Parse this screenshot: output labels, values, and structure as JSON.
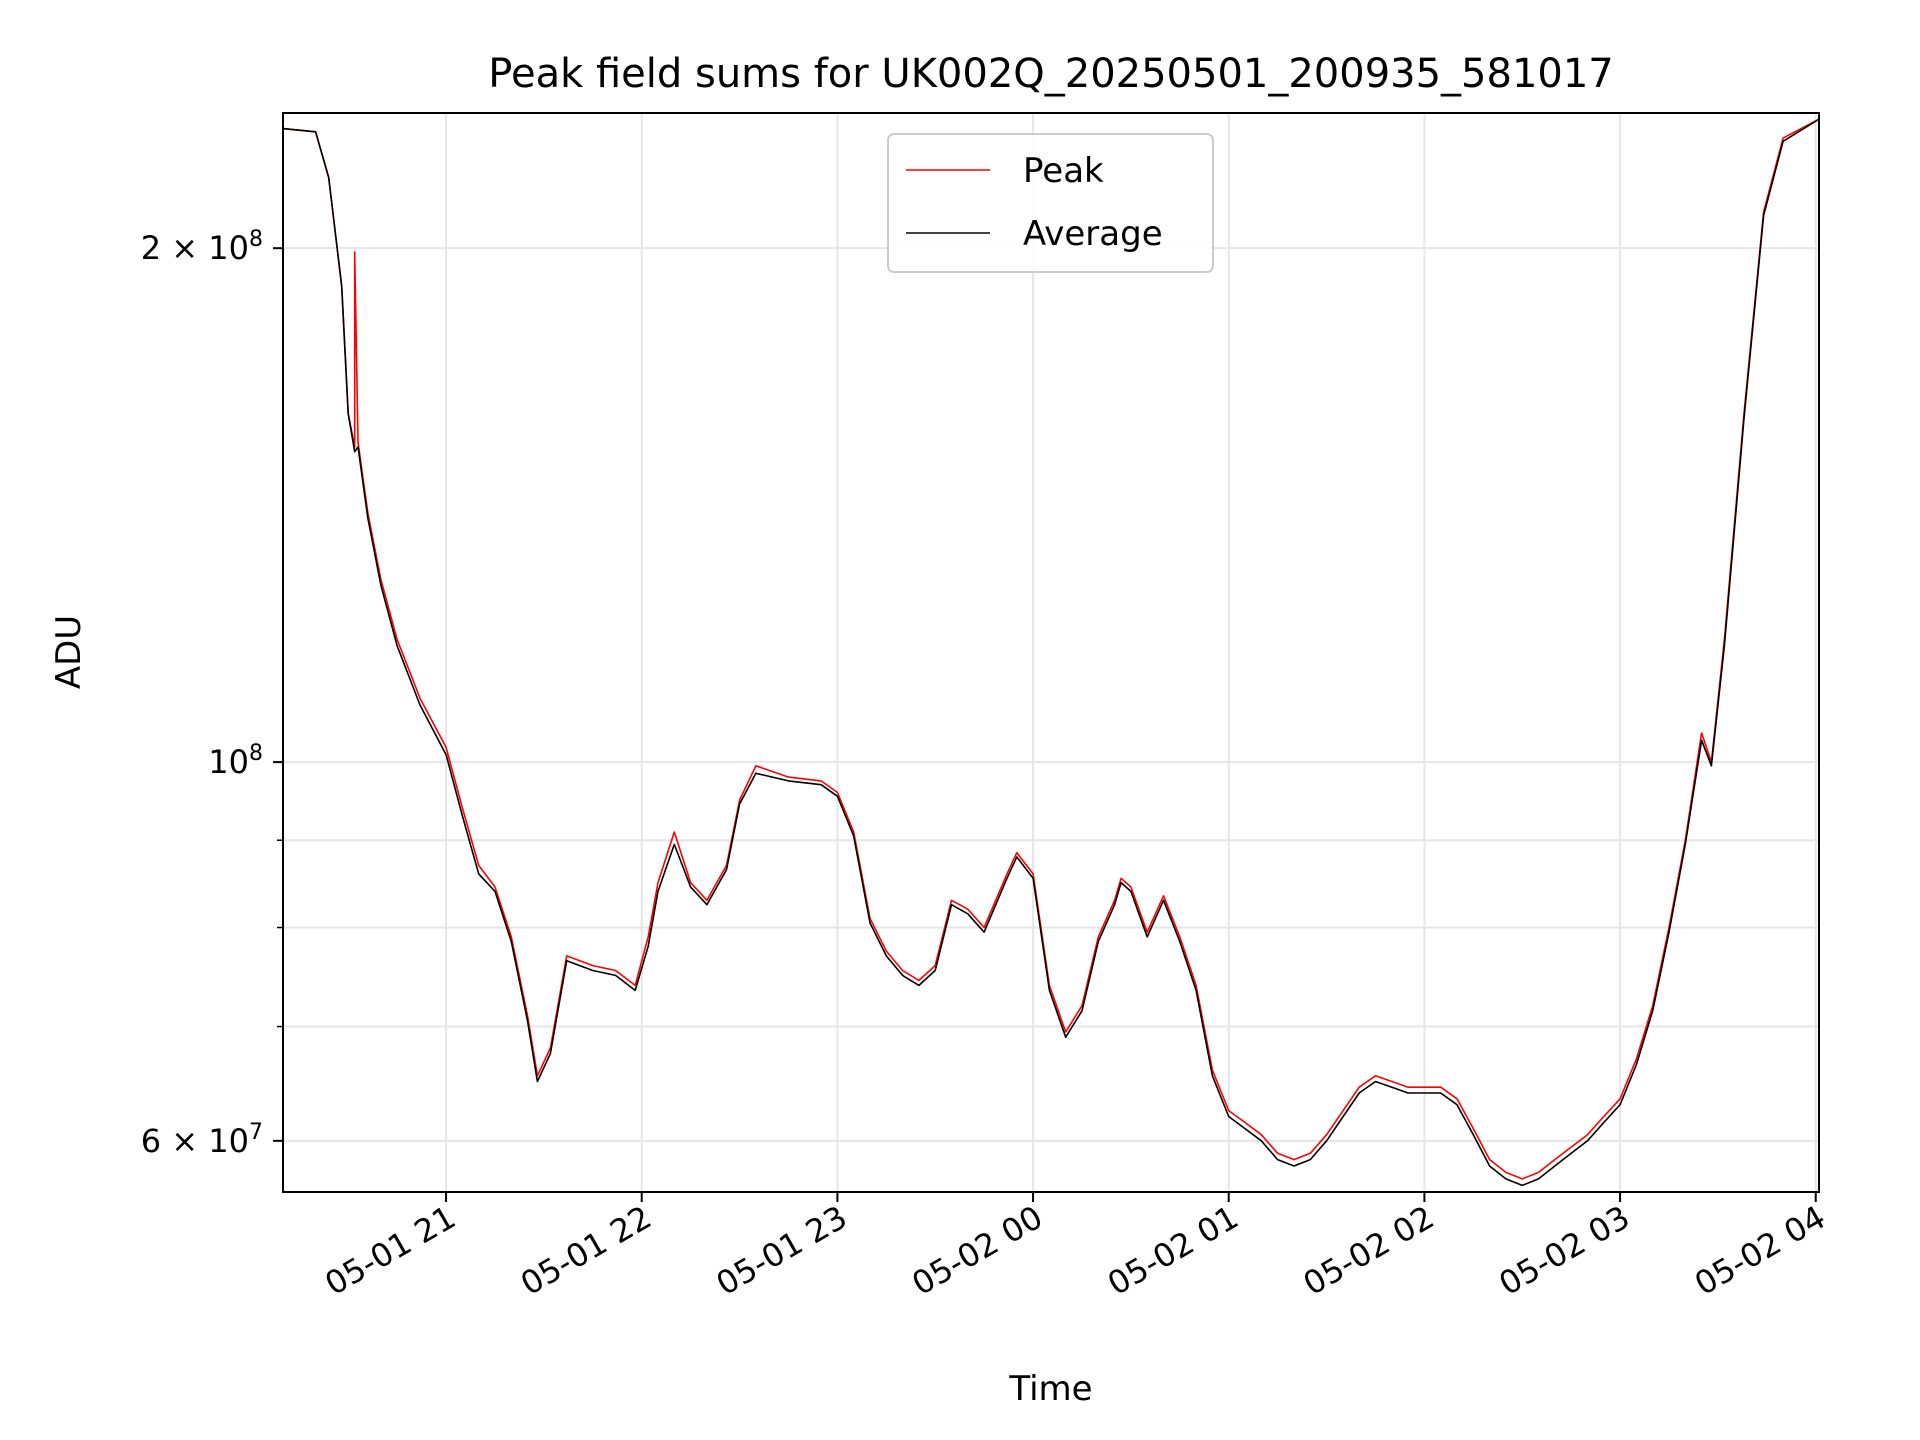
{
  "chart_data": {
    "type": "line",
    "title": "Peak field sums for UK002Q_20250501_200935_581017",
    "xlabel": "Time",
    "ylabel": "ADU",
    "yscale": "log",
    "xlim": [
      "2025-05-01 20:10",
      "2025-05-02 04:01"
    ],
    "ylim": [
      56000000,
      240000000
    ],
    "x_ticks": [
      {
        "t": "2025-05-01 21:00",
        "label": "05-01 21"
      },
      {
        "t": "2025-05-01 22:00",
        "label": "05-01 22"
      },
      {
        "t": "2025-05-01 23:00",
        "label": "05-01 23"
      },
      {
        "t": "2025-05-02 00:00",
        "label": "05-02 00"
      },
      {
        "t": "2025-05-02 01:00",
        "label": "05-02 01"
      },
      {
        "t": "2025-05-02 02:00",
        "label": "05-02 02"
      },
      {
        "t": "2025-05-02 03:00",
        "label": "05-02 03"
      },
      {
        "t": "2025-05-02 04:00",
        "label": "05-02 04"
      }
    ],
    "y_ticks": [
      {
        "value": 60000000,
        "base": "6 × 10",
        "exp": "7"
      },
      {
        "value": 100000000,
        "base": "10",
        "exp": "8"
      },
      {
        "value": 200000000,
        "base": "2 × 10",
        "exp": "8"
      }
    ],
    "y_minor_grid": [
      70000000,
      80000000,
      90000000
    ],
    "grid": true,
    "legend_position": "top-center",
    "series": [
      {
        "name": "Peak",
        "color": "#ff0000",
        "points": [
          [
            "2025-05-01 20:10",
            235000000
          ],
          [
            "2025-05-01 20:20",
            234000000
          ],
          [
            "2025-05-01 20:24",
            220000000
          ],
          [
            "2025-05-01 20:28",
            190000000
          ],
          [
            "2025-05-01 20:30",
            160000000
          ],
          [
            "2025-05-01 20:32",
            153000000
          ],
          [
            "2025-05-01 20:32",
            199000000
          ],
          [
            "2025-05-01 20:33",
            154000000
          ],
          [
            "2025-05-01 20:36",
            140000000
          ],
          [
            "2025-05-01 20:40",
            128000000
          ],
          [
            "2025-05-01 20:45",
            118000000
          ],
          [
            "2025-05-01 20:52",
            109000000
          ],
          [
            "2025-05-01 21:00",
            102000000
          ],
          [
            "2025-05-01 21:05",
            94000000
          ],
          [
            "2025-05-01 21:10",
            87000000
          ],
          [
            "2025-05-01 21:15",
            84500000
          ],
          [
            "2025-05-01 21:20",
            79000000
          ],
          [
            "2025-05-01 21:25",
            71000000
          ],
          [
            "2025-05-01 21:28",
            65500000
          ],
          [
            "2025-05-01 21:32",
            68000000
          ],
          [
            "2025-05-01 21:37",
            77000000
          ],
          [
            "2025-05-01 21:45",
            76000000
          ],
          [
            "2025-05-01 21:52",
            75500000
          ],
          [
            "2025-05-01 21:58",
            74000000
          ],
          [
            "2025-05-01 22:02",
            79000000
          ],
          [
            "2025-05-01 22:05",
            85000000
          ],
          [
            "2025-05-01 22:10",
            91000000
          ],
          [
            "2025-05-01 22:15",
            85000000
          ],
          [
            "2025-05-01 22:20",
            83000000
          ],
          [
            "2025-05-01 22:26",
            87000000
          ],
          [
            "2025-05-01 22:30",
            95000000
          ],
          [
            "2025-05-01 22:35",
            99500000
          ],
          [
            "2025-05-01 22:45",
            98000000
          ],
          [
            "2025-05-01 22:55",
            97500000
          ],
          [
            "2025-05-01 23:00",
            96000000
          ],
          [
            "2025-05-01 23:05",
            91000000
          ],
          [
            "2025-05-01 23:10",
            81000000
          ],
          [
            "2025-05-01 23:15",
            77500000
          ],
          [
            "2025-05-01 23:20",
            75500000
          ],
          [
            "2025-05-01 23:25",
            74500000
          ],
          [
            "2025-05-01 23:30",
            76000000
          ],
          [
            "2025-05-01 23:35",
            83000000
          ],
          [
            "2025-05-01 23:40",
            82000000
          ],
          [
            "2025-05-01 23:45",
            80000000
          ],
          [
            "2025-05-01 23:52",
            86000000
          ],
          [
            "2025-05-01 23:55",
            88500000
          ],
          [
            "2025-05-02 00:00",
            86000000
          ],
          [
            "2025-05-02 00:05",
            74000000
          ],
          [
            "2025-05-02 00:10",
            69500000
          ],
          [
            "2025-05-02 00:15",
            72000000
          ],
          [
            "2025-05-02 00:20",
            79000000
          ],
          [
            "2025-05-02 00:25",
            83000000
          ],
          [
            "2025-05-02 00:27",
            85500000
          ],
          [
            "2025-05-02 00:30",
            84500000
          ],
          [
            "2025-05-02 00:35",
            79500000
          ],
          [
            "2025-05-02 00:40",
            83500000
          ],
          [
            "2025-05-02 00:45",
            79000000
          ],
          [
            "2025-05-02 00:50",
            74000000
          ],
          [
            "2025-05-02 00:55",
            66000000
          ],
          [
            "2025-05-02 01:00",
            62500000
          ],
          [
            "2025-05-02 01:05",
            61500000
          ],
          [
            "2025-05-02 01:10",
            60500000
          ],
          [
            "2025-05-02 01:15",
            59000000
          ],
          [
            "2025-05-02 01:20",
            58500000
          ],
          [
            "2025-05-02 01:25",
            59000000
          ],
          [
            "2025-05-02 01:30",
            60500000
          ],
          [
            "2025-05-02 01:40",
            64500000
          ],
          [
            "2025-05-02 01:45",
            65500000
          ],
          [
            "2025-05-02 01:50",
            65000000
          ],
          [
            "2025-05-02 01:55",
            64500000
          ],
          [
            "2025-05-02 02:00",
            64500000
          ],
          [
            "2025-05-02 02:05",
            64500000
          ],
          [
            "2025-05-02 02:10",
            63500000
          ],
          [
            "2025-05-02 02:15",
            61000000
          ],
          [
            "2025-05-02 02:20",
            58500000
          ],
          [
            "2025-05-02 02:25",
            57500000
          ],
          [
            "2025-05-02 02:30",
            57000000
          ],
          [
            "2025-05-02 02:35",
            57500000
          ],
          [
            "2025-05-02 02:40",
            58500000
          ],
          [
            "2025-05-02 02:45",
            59500000
          ],
          [
            "2025-05-02 02:50",
            60500000
          ],
          [
            "2025-05-02 02:55",
            62000000
          ],
          [
            "2025-05-02 03:00",
            63500000
          ],
          [
            "2025-05-02 03:05",
            67000000
          ],
          [
            "2025-05-02 03:10",
            72000000
          ],
          [
            "2025-05-02 03:15",
            80000000
          ],
          [
            "2025-05-02 03:20",
            90000000
          ],
          [
            "2025-05-02 03:25",
            104000000
          ],
          [
            "2025-05-02 03:28",
            100000000
          ],
          [
            "2025-05-02 03:32",
            118000000
          ],
          [
            "2025-05-02 03:38",
            160000000
          ],
          [
            "2025-05-02 03:44",
            210000000
          ],
          [
            "2025-05-02 03:50",
            232000000
          ],
          [
            "2025-05-02 04:01",
            238000000
          ]
        ]
      },
      {
        "name": "Average",
        "color": "#000000",
        "points": [
          [
            "2025-05-01 20:10",
            235000000
          ],
          [
            "2025-05-01 20:20",
            234000000
          ],
          [
            "2025-05-01 20:24",
            220000000
          ],
          [
            "2025-05-01 20:28",
            190000000
          ],
          [
            "2025-05-01 20:30",
            160000000
          ],
          [
            "2025-05-01 20:32",
            152000000
          ],
          [
            "2025-05-01 20:33",
            153000000
          ],
          [
            "2025-05-01 20:36",
            139000000
          ],
          [
            "2025-05-01 20:40",
            127000000
          ],
          [
            "2025-05-01 20:45",
            117000000
          ],
          [
            "2025-05-01 20:52",
            108000000
          ],
          [
            "2025-05-01 21:00",
            101000000
          ],
          [
            "2025-05-01 21:05",
            93000000
          ],
          [
            "2025-05-01 21:10",
            86000000
          ],
          [
            "2025-05-01 21:15",
            84000000
          ],
          [
            "2025-05-01 21:20",
            78500000
          ],
          [
            "2025-05-01 21:25",
            70500000
          ],
          [
            "2025-05-01 21:28",
            65000000
          ],
          [
            "2025-05-01 21:32",
            67500000
          ],
          [
            "2025-05-01 21:37",
            76500000
          ],
          [
            "2025-05-01 21:45",
            75500000
          ],
          [
            "2025-05-01 21:52",
            75000000
          ],
          [
            "2025-05-01 21:58",
            73500000
          ],
          [
            "2025-05-01 22:02",
            78000000
          ],
          [
            "2025-05-01 22:05",
            84000000
          ],
          [
            "2025-05-01 22:10",
            89500000
          ],
          [
            "2025-05-01 22:15",
            84500000
          ],
          [
            "2025-05-01 22:20",
            82500000
          ],
          [
            "2025-05-01 22:26",
            86500000
          ],
          [
            "2025-05-01 22:30",
            94500000
          ],
          [
            "2025-05-01 22:35",
            98500000
          ],
          [
            "2025-05-01 22:45",
            97500000
          ],
          [
            "2025-05-01 22:55",
            97000000
          ],
          [
            "2025-05-01 23:00",
            95500000
          ],
          [
            "2025-05-01 23:05",
            90500000
          ],
          [
            "2025-05-01 23:10",
            80500000
          ],
          [
            "2025-05-01 23:15",
            77000000
          ],
          [
            "2025-05-01 23:20",
            75000000
          ],
          [
            "2025-05-01 23:25",
            74000000
          ],
          [
            "2025-05-01 23:30",
            75500000
          ],
          [
            "2025-05-01 23:35",
            82500000
          ],
          [
            "2025-05-01 23:40",
            81500000
          ],
          [
            "2025-05-01 23:45",
            79500000
          ],
          [
            "2025-05-01 23:52",
            85500000
          ],
          [
            "2025-05-01 23:55",
            88000000
          ],
          [
            "2025-05-02 00:00",
            85500000
          ],
          [
            "2025-05-02 00:05",
            73500000
          ],
          [
            "2025-05-02 00:10",
            69000000
          ],
          [
            "2025-05-02 00:15",
            71500000
          ],
          [
            "2025-05-02 00:20",
            78500000
          ],
          [
            "2025-05-02 00:25",
            82500000
          ],
          [
            "2025-05-02 00:27",
            85000000
          ],
          [
            "2025-05-02 00:30",
            84000000
          ],
          [
            "2025-05-02 00:35",
            79000000
          ],
          [
            "2025-05-02 00:40",
            83000000
          ],
          [
            "2025-05-02 00:45",
            78500000
          ],
          [
            "2025-05-02 00:50",
            73500000
          ],
          [
            "2025-05-02 00:55",
            65500000
          ],
          [
            "2025-05-02 01:00",
            62000000
          ],
          [
            "2025-05-02 01:05",
            61000000
          ],
          [
            "2025-05-02 01:10",
            60000000
          ],
          [
            "2025-05-02 01:15",
            58500000
          ],
          [
            "2025-05-02 01:20",
            58000000
          ],
          [
            "2025-05-02 01:25",
            58500000
          ],
          [
            "2025-05-02 01:30",
            60000000
          ],
          [
            "2025-05-02 01:40",
            64000000
          ],
          [
            "2025-05-02 01:45",
            65000000
          ],
          [
            "2025-05-02 01:50",
            64500000
          ],
          [
            "2025-05-02 01:55",
            64000000
          ],
          [
            "2025-05-02 02:00",
            64000000
          ],
          [
            "2025-05-02 02:05",
            64000000
          ],
          [
            "2025-05-02 02:10",
            63000000
          ],
          [
            "2025-05-02 02:15",
            60500000
          ],
          [
            "2025-05-02 02:20",
            58000000
          ],
          [
            "2025-05-02 02:25",
            57000000
          ],
          [
            "2025-05-02 02:30",
            56500000
          ],
          [
            "2025-05-02 02:35",
            57000000
          ],
          [
            "2025-05-02 02:40",
            58000000
          ],
          [
            "2025-05-02 02:45",
            59000000
          ],
          [
            "2025-05-02 02:50",
            60000000
          ],
          [
            "2025-05-02 02:55",
            61500000
          ],
          [
            "2025-05-02 03:00",
            63000000
          ],
          [
            "2025-05-02 03:05",
            66500000
          ],
          [
            "2025-05-02 03:10",
            71500000
          ],
          [
            "2025-05-02 03:15",
            79500000
          ],
          [
            "2025-05-02 03:20",
            89500000
          ],
          [
            "2025-05-02 03:25",
            103000000
          ],
          [
            "2025-05-02 03:28",
            99500000
          ],
          [
            "2025-05-02 03:32",
            117000000
          ],
          [
            "2025-05-02 03:38",
            159000000
          ],
          [
            "2025-05-02 03:44",
            209000000
          ],
          [
            "2025-05-02 03:50",
            231000000
          ],
          [
            "2025-05-02 04:01",
            238000000
          ]
        ]
      }
    ]
  }
}
